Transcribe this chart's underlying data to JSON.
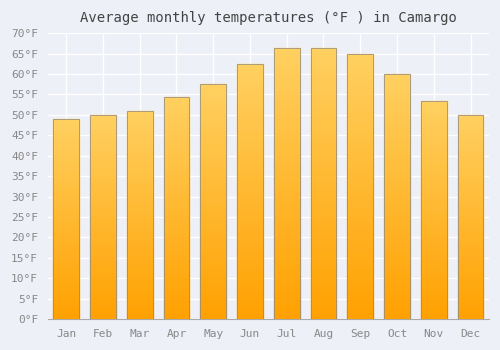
{
  "title": "Average monthly temperatures (°F ) in Camargo",
  "months": [
    "Jan",
    "Feb",
    "Mar",
    "Apr",
    "May",
    "Jun",
    "Jul",
    "Aug",
    "Sep",
    "Oct",
    "Nov",
    "Dec"
  ],
  "values": [
    49.0,
    50.0,
    51.0,
    54.5,
    57.5,
    62.5,
    66.5,
    66.5,
    65.0,
    60.0,
    53.5,
    50.0
  ],
  "bar_color_top": "#FFD060",
  "bar_color_bottom": "#FFA000",
  "bar_edge_color": "#888888",
  "background_color": "#EEF0F8",
  "plot_bg_color": "#EEF0F8",
  "grid_color": "#FFFFFF",
  "text_color": "#888888",
  "title_color": "#444444",
  "ylim": [
    0,
    70
  ],
  "ytick_step": 5,
  "title_fontsize": 10,
  "tick_fontsize": 8
}
